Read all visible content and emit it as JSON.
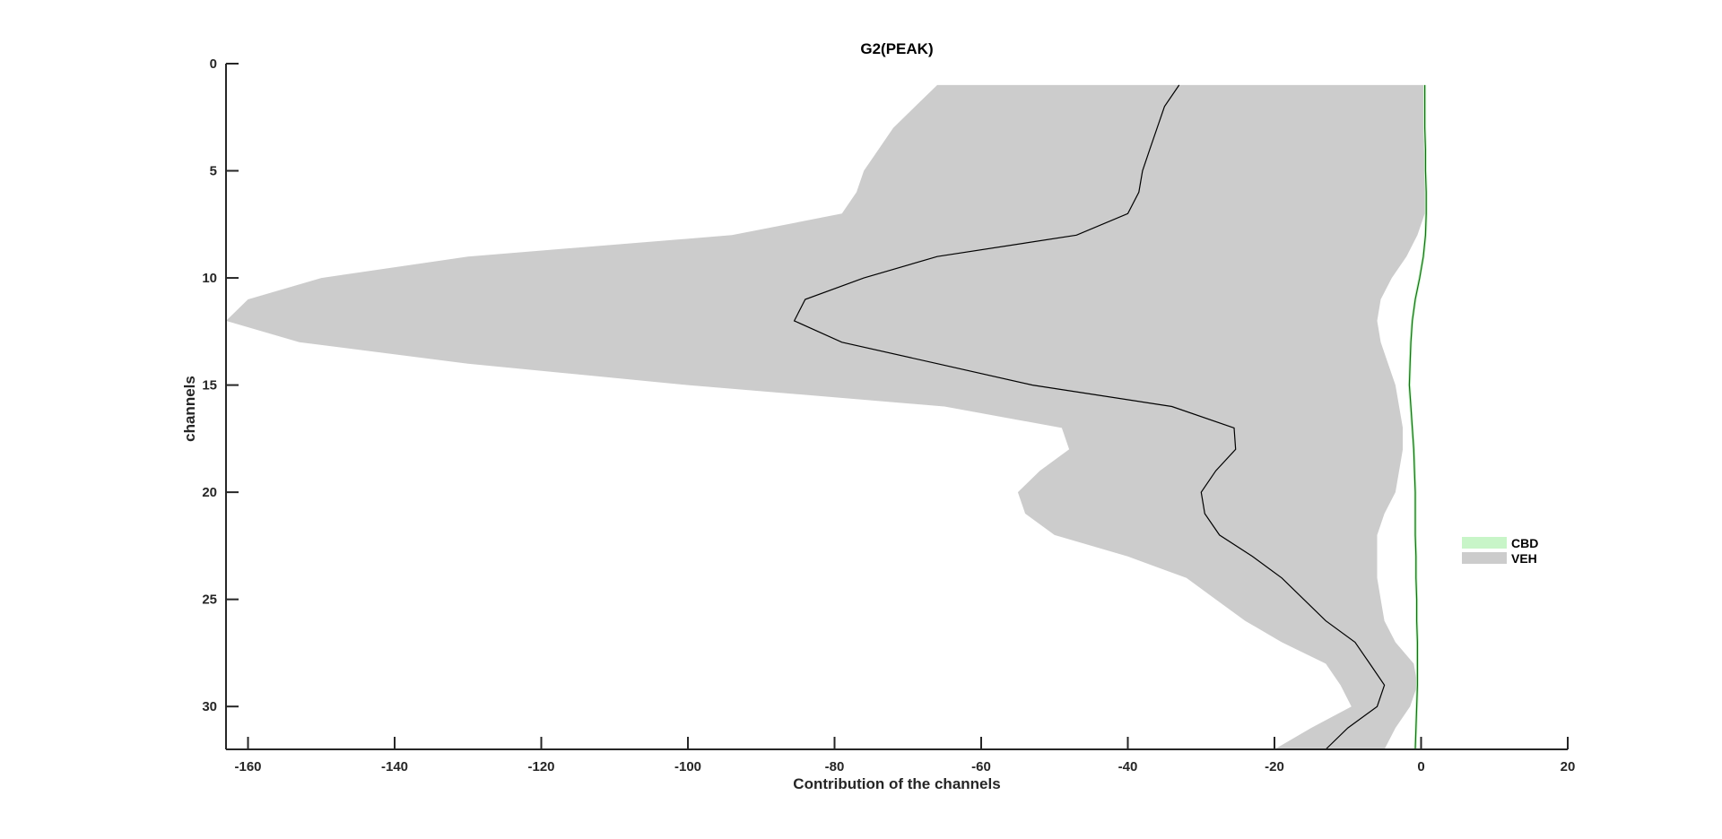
{
  "chart_data": {
    "type": "area",
    "title": "G2(PEAK)",
    "xlabel": "Contribution of the channels",
    "ylabel": "channels",
    "xlim": [
      -163,
      20
    ],
    "ylim": [
      0,
      32
    ],
    "y_reversed": true,
    "grid": false,
    "legend_position": "right",
    "xticks": [
      -160,
      -140,
      -120,
      -100,
      -80,
      -60,
      -40,
      -20,
      0,
      20
    ],
    "yticks": [
      0,
      5,
      10,
      15,
      20,
      25,
      30
    ],
    "channels": [
      1,
      2,
      3,
      4,
      5,
      6,
      7,
      8,
      9,
      10,
      11,
      12,
      13,
      14,
      15,
      16,
      17,
      18,
      19,
      20,
      21,
      22,
      23,
      24,
      25,
      26,
      27,
      28,
      29,
      30,
      31,
      32
    ],
    "series": [
      {
        "name": "CBD",
        "color": "#c8f5c8",
        "line_color": "#1a6b1a",
        "mean": [
          0.5,
          0.5,
          0.5,
          0.6,
          0.6,
          0.7,
          0.7,
          0.6,
          0.3,
          -0.2,
          -0.8,
          -1.2,
          -1.4,
          -1.5,
          -1.6,
          -1.4,
          -1.2,
          -1.0,
          -0.9,
          -0.8,
          -0.8,
          -0.8,
          -0.7,
          -0.7,
          -0.6,
          -0.6,
          -0.5,
          -0.5,
          -0.5,
          -0.6,
          -0.7,
          -0.8
        ],
        "lower": [
          0.3,
          0.3,
          0.3,
          0.4,
          0.4,
          0.5,
          0.5,
          0.4,
          0.1,
          -0.4,
          -1.0,
          -1.4,
          -1.6,
          -1.7,
          -1.8,
          -1.6,
          -1.4,
          -1.2,
          -1.1,
          -1.0,
          -1.0,
          -1.0,
          -0.9,
          -0.9,
          -0.8,
          -0.8,
          -0.7,
          -0.7,
          -0.7,
          -0.8,
          -0.9,
          -1.0
        ],
        "upper": [
          0.7,
          0.7,
          0.7,
          0.8,
          0.8,
          0.9,
          0.9,
          0.8,
          0.5,
          0.0,
          -0.6,
          -1.0,
          -1.2,
          -1.3,
          -1.4,
          -1.2,
          -1.0,
          -0.8,
          -0.7,
          -0.6,
          -0.6,
          -0.6,
          -0.5,
          -0.5,
          -0.4,
          -0.4,
          -0.3,
          -0.3,
          -0.3,
          -0.4,
          -0.5,
          -0.6
        ]
      },
      {
        "name": "VEH",
        "color": "#cccccc",
        "line_color": "#000000",
        "mean": [
          -33,
          -35,
          -36,
          -37,
          -38,
          -38.5,
          -40,
          -47,
          -66,
          -76,
          -84,
          -85.5,
          -79,
          -66,
          -53,
          -34,
          -25.5,
          -25.3,
          -28,
          -30,
          -29.5,
          -27.5,
          -23,
          -19,
          -16,
          -13,
          -9,
          -7,
          -5,
          -6,
          -10,
          -13
        ],
        "lower": [
          -66,
          -69,
          -72,
          -74,
          -76,
          -77,
          -79,
          -94,
          -130,
          -150,
          -160,
          -163,
          -153,
          -130,
          -100,
          -65,
          -49,
          -48,
          -52,
          -55,
          -54,
          -50,
          -40,
          -32,
          -28,
          -24,
          -19,
          -13,
          -11,
          -9.5,
          -15,
          -20
        ],
        "upper": [
          0.3,
          0.3,
          0.3,
          0.4,
          0.5,
          0.5,
          0.5,
          -0.5,
          -2,
          -4,
          -5.5,
          -6,
          -5.5,
          -4.5,
          -3.5,
          -3,
          -2.5,
          -2.5,
          -3,
          -3.5,
          -5,
          -6,
          -6,
          -6,
          -5.5,
          -5,
          -3.5,
          -1,
          -0.5,
          -1.5,
          -3.5,
          -5
        ]
      }
    ]
  }
}
